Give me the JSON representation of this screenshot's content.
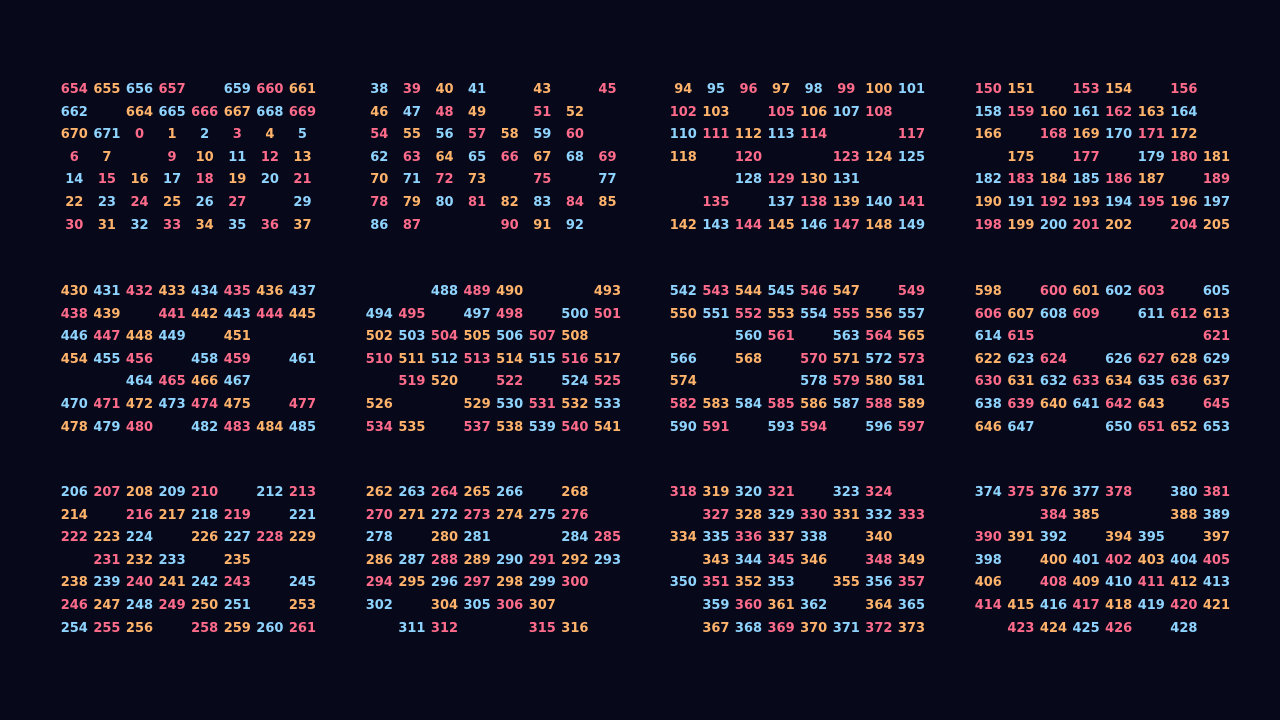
{
  "palette": [
    "#ff6b8b",
    "#7dffa4",
    "#8fd4ff",
    "#a98bff",
    "#ff7fd8",
    "#ffb36b",
    "#7de8ff",
    "#b8ff7d"
  ],
  "grids": [
    {
      "name": "block-top-1",
      "rows": [
        [
          "654",
          "655",
          "656",
          "657",
          "",
          "659",
          "660",
          "661"
        ],
        [
          "662",
          "",
          "664",
          "665",
          "666",
          "667",
          "668",
          "669"
        ],
        [
          "670",
          "671",
          "0",
          "1",
          "2",
          "3",
          "4",
          "5"
        ],
        [
          "6",
          "7",
          "",
          "9",
          "10",
          "11",
          "12",
          "13"
        ],
        [
          "14",
          "15",
          "16",
          "17",
          "18",
          "19",
          "20",
          "21"
        ],
        [
          "22",
          "23",
          "24",
          "25",
          "26",
          "27",
          "",
          "29"
        ],
        [
          "30",
          "31",
          "32",
          "33",
          "34",
          "35",
          "36",
          "37"
        ]
      ]
    },
    {
      "name": "block-top-2",
      "rows": [
        [
          "38",
          "39",
          "40",
          "41",
          "",
          "43",
          "",
          "45"
        ],
        [
          "46",
          "47",
          "48",
          "49",
          "",
          "51",
          "52",
          ""
        ],
        [
          "54",
          "55",
          "56",
          "57",
          "58",
          "59",
          "60",
          ""
        ],
        [
          "62",
          "63",
          "64",
          "65",
          "66",
          "67",
          "68",
          "69"
        ],
        [
          "70",
          "71",
          "72",
          "73",
          "",
          "75",
          "",
          "77"
        ],
        [
          "78",
          "79",
          "80",
          "81",
          "82",
          "83",
          "84",
          "85"
        ],
        [
          "86",
          "87",
          "",
          "",
          "90",
          "91",
          "92",
          ""
        ]
      ]
    },
    {
      "name": "block-top-3",
      "rows": [
        [
          "94",
          "95",
          "96",
          "97",
          "98",
          "99",
          "100",
          "101"
        ],
        [
          "102",
          "103",
          "",
          "105",
          "106",
          "107",
          "108",
          ""
        ],
        [
          "110",
          "111",
          "112",
          "113",
          "114",
          "",
          "",
          "117"
        ],
        [
          "118",
          "",
          "120",
          "",
          "",
          "123",
          "124",
          "125"
        ],
        [
          "",
          "",
          "128",
          "129",
          "130",
          "131",
          "",
          ""
        ],
        [
          "",
          "135",
          "",
          "137",
          "138",
          "139",
          "140",
          "141"
        ],
        [
          "142",
          "143",
          "144",
          "145",
          "146",
          "147",
          "148",
          "149"
        ]
      ]
    },
    {
      "name": "block-top-4",
      "rows": [
        [
          "150",
          "151",
          "",
          "153",
          "154",
          "",
          "156",
          ""
        ],
        [
          "158",
          "159",
          "160",
          "161",
          "162",
          "163",
          "164",
          ""
        ],
        [
          "166",
          "",
          "168",
          "169",
          "170",
          "171",
          "172",
          ""
        ],
        [
          "",
          "175",
          "",
          "177",
          "",
          "179",
          "180",
          "181"
        ],
        [
          "182",
          "183",
          "184",
          "185",
          "186",
          "187",
          "",
          "189"
        ],
        [
          "190",
          "191",
          "192",
          "193",
          "194",
          "195",
          "196",
          "197"
        ],
        [
          "198",
          "199",
          "200",
          "201",
          "202",
          "",
          "204",
          "205"
        ]
      ]
    },
    {
      "name": "block-middle-1",
      "rows": [
        [
          "430",
          "431",
          "432",
          "433",
          "434",
          "435",
          "436",
          "437"
        ],
        [
          "438",
          "439",
          "",
          "441",
          "442",
          "443",
          "444",
          "445"
        ],
        [
          "446",
          "447",
          "448",
          "449",
          "",
          "451",
          "",
          ""
        ],
        [
          "454",
          "455",
          "456",
          "",
          "458",
          "459",
          "",
          "461"
        ],
        [
          "",
          "",
          "464",
          "465",
          "466",
          "467",
          "",
          ""
        ],
        [
          "470",
          "471",
          "472",
          "473",
          "474",
          "475",
          "",
          "477"
        ],
        [
          "478",
          "479",
          "480",
          "",
          "482",
          "483",
          "484",
          "485"
        ]
      ]
    },
    {
      "name": "block-middle-2",
      "rows": [
        [
          "",
          "",
          "488",
          "489",
          "490",
          "",
          "",
          "493"
        ],
        [
          "494",
          "495",
          "",
          "497",
          "498",
          "",
          "500",
          "501"
        ],
        [
          "502",
          "503",
          "504",
          "505",
          "506",
          "507",
          "508",
          ""
        ],
        [
          "510",
          "511",
          "512",
          "513",
          "514",
          "515",
          "516",
          "517"
        ],
        [
          "",
          "519",
          "520",
          "",
          "522",
          "",
          "524",
          "525"
        ],
        [
          "526",
          "",
          "",
          "529",
          "530",
          "531",
          "532",
          "533"
        ],
        [
          "534",
          "535",
          "",
          "537",
          "538",
          "539",
          "540",
          "541"
        ]
      ]
    },
    {
      "name": "block-middle-3",
      "rows": [
        [
          "542",
          "543",
          "544",
          "545",
          "546",
          "547",
          "",
          "549"
        ],
        [
          "550",
          "551",
          "552",
          "553",
          "554",
          "555",
          "556",
          "557"
        ],
        [
          "",
          "",
          "560",
          "561",
          "",
          "563",
          "564",
          "565"
        ],
        [
          "566",
          "",
          "568",
          "",
          "570",
          "571",
          "572",
          "573"
        ],
        [
          "574",
          "",
          "",
          "",
          "578",
          "579",
          "580",
          "581"
        ],
        [
          "582",
          "583",
          "584",
          "585",
          "586",
          "587",
          "588",
          "589"
        ],
        [
          "590",
          "591",
          "",
          "593",
          "594",
          "",
          "596",
          "597"
        ]
      ]
    },
    {
      "name": "block-middle-4",
      "rows": [
        [
          "598",
          "",
          "600",
          "601",
          "602",
          "603",
          "",
          "605"
        ],
        [
          "606",
          "607",
          "608",
          "609",
          "",
          "611",
          "612",
          "613"
        ],
        [
          "614",
          "615",
          "",
          "",
          "",
          "",
          "",
          "621"
        ],
        [
          "622",
          "623",
          "624",
          "",
          "626",
          "627",
          "628",
          "629"
        ],
        [
          "630",
          "631",
          "632",
          "633",
          "634",
          "635",
          "636",
          "637"
        ],
        [
          "638",
          "639",
          "640",
          "641",
          "642",
          "643",
          "",
          "645"
        ],
        [
          "646",
          "647",
          "",
          "",
          "650",
          "651",
          "652",
          "653"
        ]
      ]
    },
    {
      "name": "block-bottom-1",
      "rows": [
        [
          "206",
          "207",
          "208",
          "209",
          "210",
          "",
          "212",
          "213"
        ],
        [
          "214",
          "",
          "216",
          "217",
          "218",
          "219",
          "",
          "221"
        ],
        [
          "222",
          "223",
          "224",
          "",
          "226",
          "227",
          "228",
          "229"
        ],
        [
          "",
          "231",
          "232",
          "233",
          "",
          "235",
          "",
          ""
        ],
        [
          "238",
          "239",
          "240",
          "241",
          "242",
          "243",
          "",
          "245"
        ],
        [
          "246",
          "247",
          "248",
          "249",
          "250",
          "251",
          "",
          "253"
        ],
        [
          "254",
          "255",
          "256",
          "",
          "258",
          "259",
          "260",
          "261"
        ]
      ]
    },
    {
      "name": "block-bottom-2",
      "rows": [
        [
          "262",
          "263",
          "264",
          "265",
          "266",
          "",
          "268",
          ""
        ],
        [
          "270",
          "271",
          "272",
          "273",
          "274",
          "275",
          "276",
          ""
        ],
        [
          "278",
          "",
          "280",
          "281",
          "",
          "",
          "284",
          "285"
        ],
        [
          "286",
          "287",
          "288",
          "289",
          "290",
          "291",
          "292",
          "293"
        ],
        [
          "294",
          "295",
          "296",
          "297",
          "298",
          "299",
          "300",
          ""
        ],
        [
          "302",
          "",
          "304",
          "305",
          "306",
          "307",
          "",
          ""
        ],
        [
          "",
          "311",
          "312",
          "",
          "",
          "315",
          "316",
          ""
        ]
      ]
    },
    {
      "name": "block-bottom-3",
      "rows": [
        [
          "318",
          "319",
          "320",
          "321",
          "",
          "323",
          "324",
          ""
        ],
        [
          "",
          "327",
          "328",
          "329",
          "330",
          "331",
          "332",
          "333"
        ],
        [
          "334",
          "335",
          "336",
          "337",
          "338",
          "",
          "340",
          ""
        ],
        [
          "",
          "343",
          "344",
          "345",
          "346",
          "",
          "348",
          "349"
        ],
        [
          "350",
          "351",
          "352",
          "353",
          "",
          "355",
          "356",
          "357"
        ],
        [
          "",
          "359",
          "360",
          "361",
          "362",
          "",
          "364",
          "365"
        ],
        [
          "",
          "367",
          "368",
          "369",
          "370",
          "371",
          "372",
          "373"
        ]
      ]
    },
    {
      "name": "block-bottom-4",
      "rows": [
        [
          "374",
          "375",
          "376",
          "377",
          "378",
          "",
          "380",
          "381"
        ],
        [
          "",
          "",
          "384",
          "385",
          "",
          "",
          "388",
          "389"
        ],
        [
          "390",
          "391",
          "392",
          "",
          "394",
          "395",
          "",
          "397"
        ],
        [
          "398",
          "",
          "400",
          "401",
          "402",
          "403",
          "404",
          "405"
        ],
        [
          "406",
          "",
          "408",
          "409",
          "410",
          "411",
          "412",
          "413"
        ],
        [
          "414",
          "415",
          "416",
          "417",
          "418",
          "419",
          "420",
          "421"
        ],
        [
          "",
          "423",
          "424",
          "425",
          "426",
          "",
          "428",
          ""
        ]
      ]
    }
  ]
}
